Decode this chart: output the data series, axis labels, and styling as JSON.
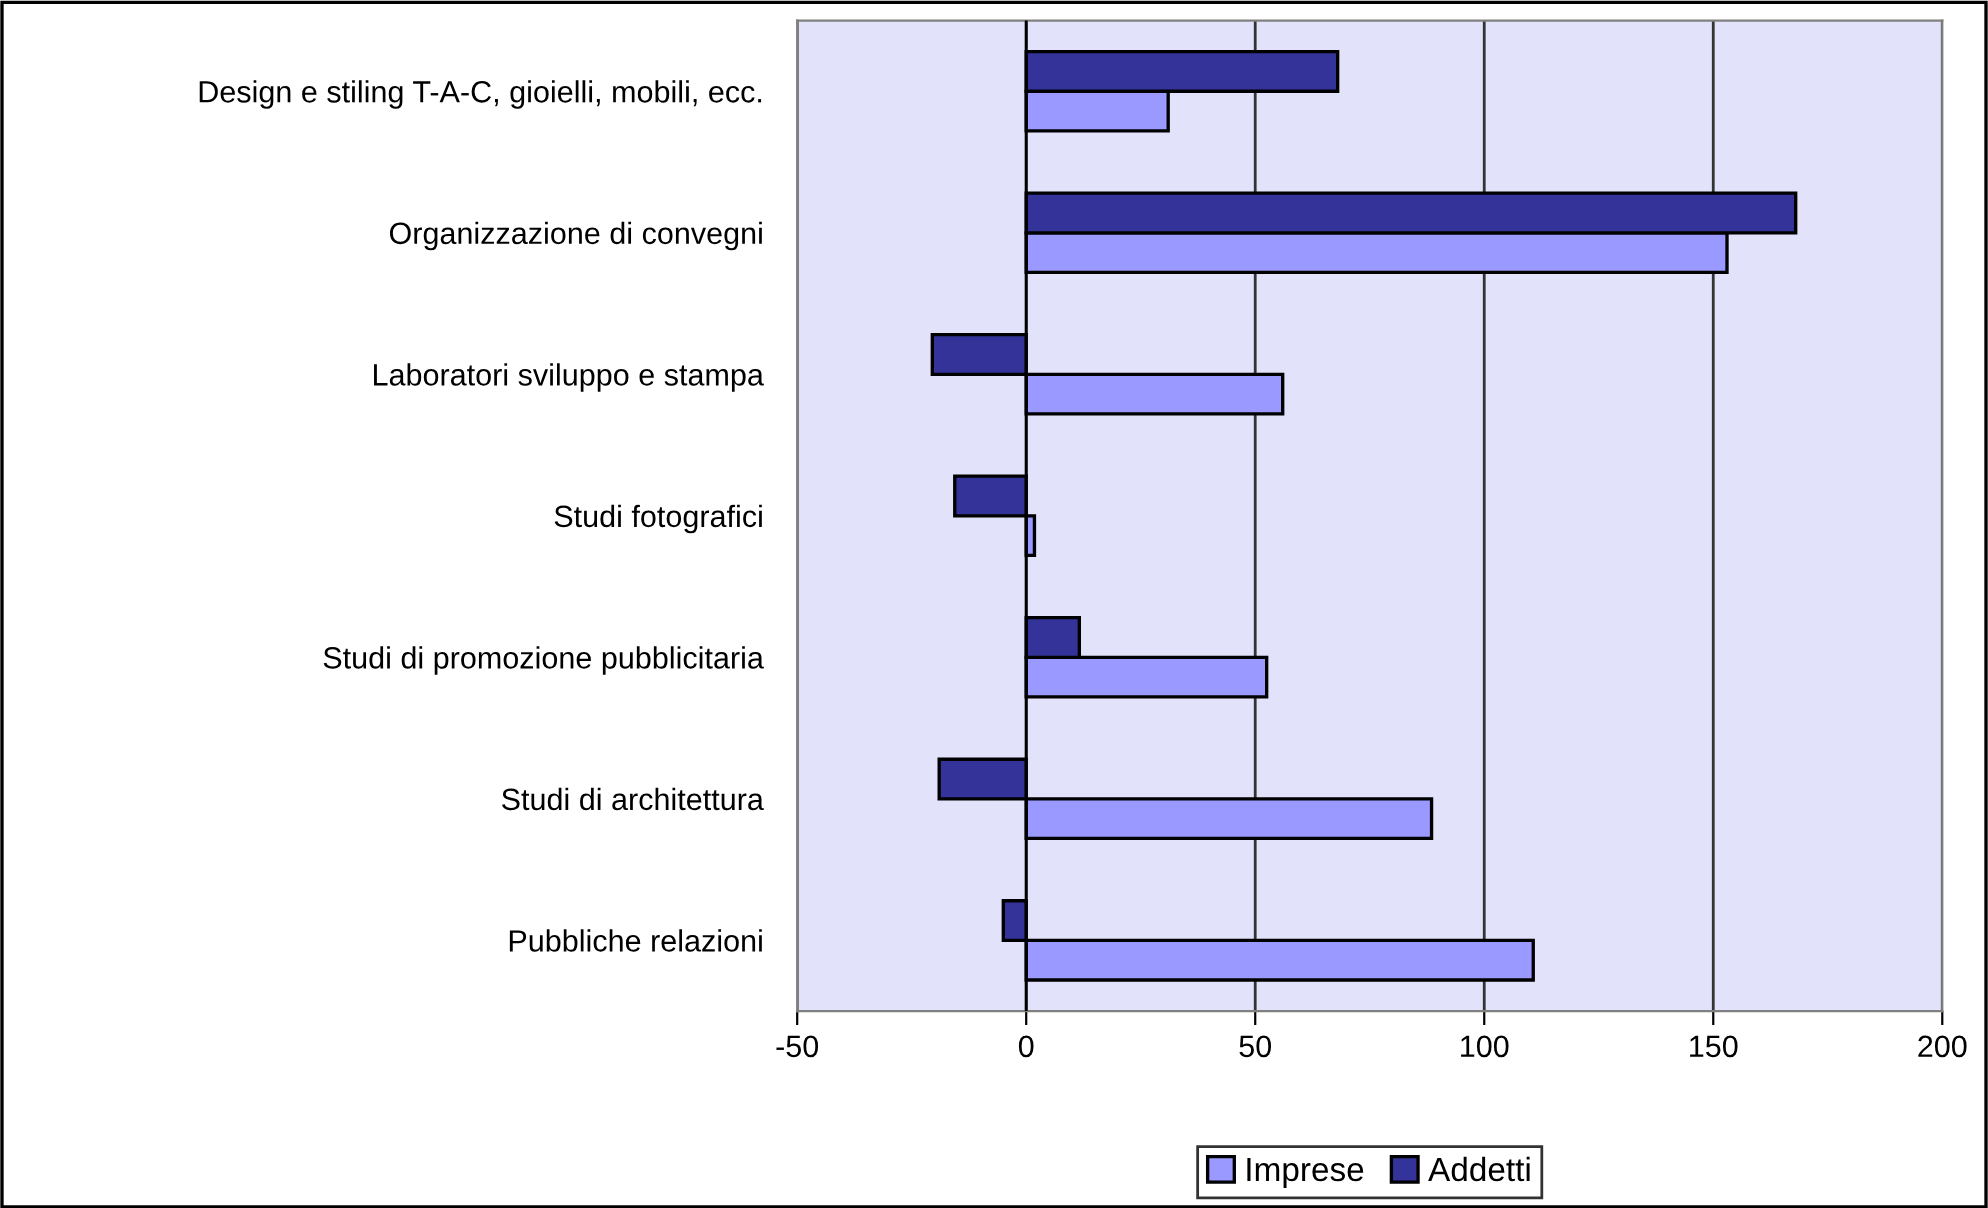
{
  "chart_data": {
    "type": "bar",
    "orientation": "horizontal",
    "categories": [
      "Design e stiling T-A-C, gioielli, mobili, ecc.",
      "Organizzazione di convegni",
      "Laboratori sviluppo e stampa",
      "Studi fotografici",
      "Studi di promozione pubblicitaria",
      "Studi di architettura",
      "Pubbliche relazioni"
    ],
    "series": [
      {
        "name": "Imprese",
        "color": "#9999ff",
        "values": [
          31,
          153,
          56,
          1.8,
          52.5,
          88.5,
          110.7
        ]
      },
      {
        "name": "Addetti",
        "color": "#333399",
        "values": [
          68,
          168,
          -20.5,
          -15.6,
          11.6,
          -19,
          -5
        ]
      }
    ],
    "xlim": [
      -50,
      200
    ],
    "xticks": [
      -50,
      0,
      50,
      100,
      150,
      200
    ],
    "grid": "x",
    "legend": "bottom"
  }
}
